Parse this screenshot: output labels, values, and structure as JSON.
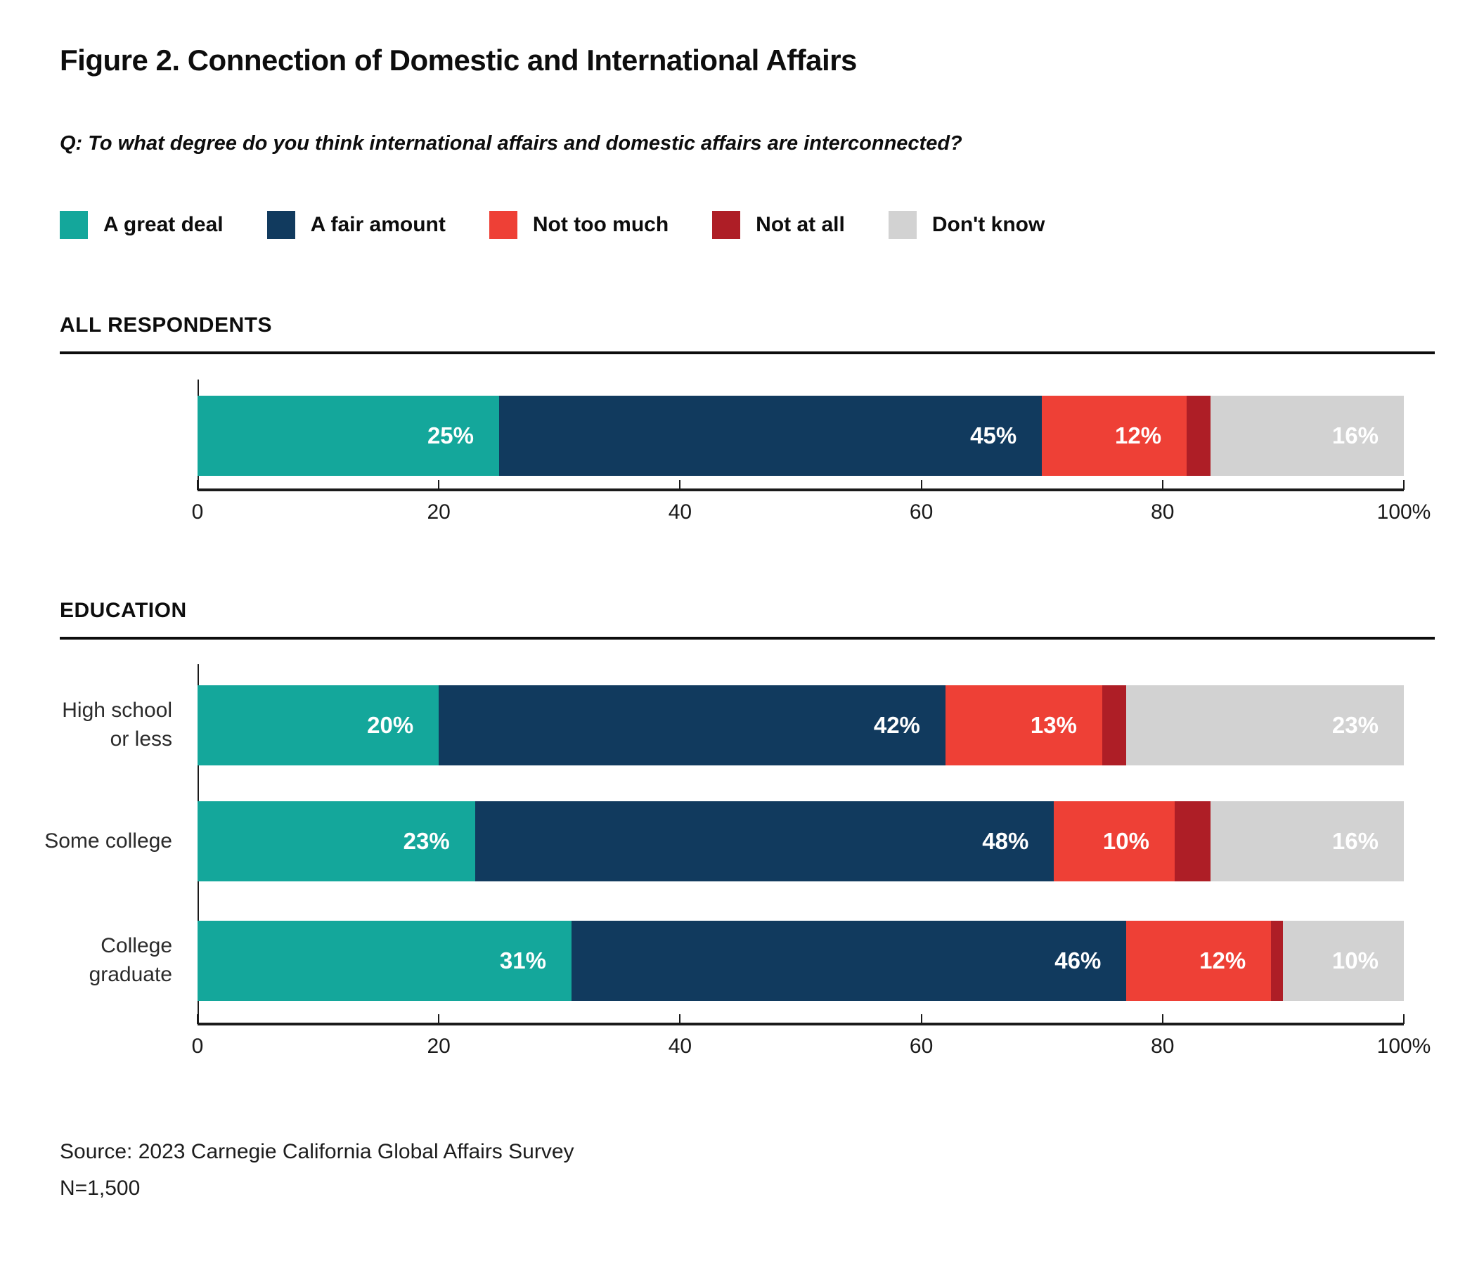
{
  "figure": {
    "title": "Figure 2. Connection of Domestic and International Affairs",
    "question": "Q: To what degree do you think international affairs and domestic affairs are interconnected?",
    "source": "Source: 2023 Carnegie California Global Affairs Survey",
    "sample_size": "N=1,500"
  },
  "legend": {
    "items": [
      {
        "label": "A great deal",
        "color": "#14A79B"
      },
      {
        "label": "A fair amount",
        "color": "#113A5E"
      },
      {
        "label": "Not too much",
        "color": "#EE4036"
      },
      {
        "label": "Not at all",
        "color": "#AE1E26"
      },
      {
        "label": "Don't know",
        "color": "#D2D2D2"
      }
    ]
  },
  "sections": [
    {
      "label": "ALL RESPONDENTS"
    },
    {
      "label": "EDUCATION"
    }
  ],
  "axis": {
    "tick_labels": [
      "0",
      "20",
      "40",
      "60",
      "80",
      "100%"
    ],
    "range": [
      0,
      100
    ]
  },
  "chart_data": [
    {
      "type": "bar",
      "stacked": true,
      "orientation": "horizontal",
      "section": "ALL RESPONDENTS",
      "categories": [
        "All respondents"
      ],
      "category_lines": [
        []
      ],
      "series": [
        {
          "name": "A great deal",
          "values": [
            25
          ]
        },
        {
          "name": "A fair amount",
          "values": [
            45
          ]
        },
        {
          "name": "Not too much",
          "values": [
            12
          ]
        },
        {
          "name": "Not at all",
          "values": [
            2
          ]
        },
        {
          "name": "Don't know",
          "values": [
            16
          ]
        }
      ],
      "value_suffix": "%",
      "xlim": [
        0,
        100
      ],
      "xticks": [
        "0",
        "20",
        "40",
        "60",
        "80",
        "100%"
      ],
      "legend_position": "top"
    },
    {
      "type": "bar",
      "stacked": true,
      "orientation": "horizontal",
      "section": "EDUCATION",
      "categories": [
        "High school or less",
        "Some college",
        "College graduate"
      ],
      "category_lines": [
        [
          "High school",
          "or less"
        ],
        [
          "Some college"
        ],
        [
          "College",
          "graduate"
        ]
      ],
      "series": [
        {
          "name": "A great deal",
          "values": [
            20,
            23,
            31
          ]
        },
        {
          "name": "A fair amount",
          "values": [
            42,
            48,
            46
          ]
        },
        {
          "name": "Not too much",
          "values": [
            13,
            10,
            12
          ]
        },
        {
          "name": "Not at all",
          "values": [
            2,
            3,
            1
          ]
        },
        {
          "name": "Don't know",
          "values": [
            23,
            16,
            10
          ]
        }
      ],
      "value_suffix": "%",
      "xlim": [
        0,
        100
      ],
      "xticks": [
        "0",
        "20",
        "40",
        "60",
        "80",
        "100%"
      ],
      "legend_position": "top"
    }
  ]
}
